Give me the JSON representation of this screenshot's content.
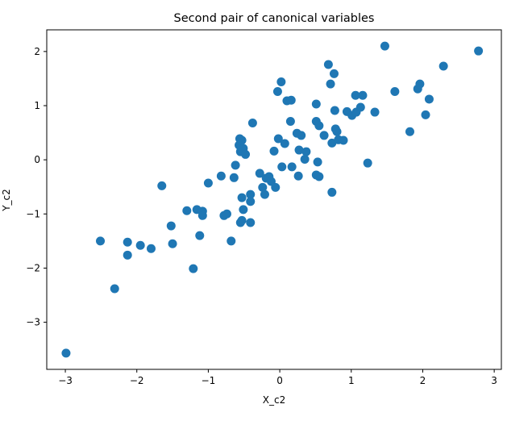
{
  "chart_data": {
    "type": "scatter",
    "title": "Second pair of canonical variables",
    "xlabel": "X_c2",
    "ylabel": "Y_c2",
    "xlim": [
      -3.26,
      3.1
    ],
    "ylim": [
      -3.87,
      2.4
    ],
    "xticks": [
      -3,
      -2,
      -1,
      0,
      1,
      2,
      3
    ],
    "yticks": [
      -3,
      -2,
      -1,
      0,
      1,
      2
    ],
    "xtick_labels": [
      "−3",
      "−2",
      "−1",
      "0",
      "1",
      "2",
      "3"
    ],
    "ytick_labels": [
      "−3",
      "−2",
      "−1",
      "0",
      "1",
      "2"
    ],
    "grid": false,
    "color": "#1f77b4",
    "points": [
      [
        -2.99,
        -3.57
      ],
      [
        -2.51,
        -1.5
      ],
      [
        -2.31,
        -2.38
      ],
      [
        -2.13,
        -1.52
      ],
      [
        -2.13,
        -1.76
      ],
      [
        -1.95,
        -1.58
      ],
      [
        -1.8,
        -1.64
      ],
      [
        -1.65,
        -0.48
      ],
      [
        -1.52,
        -1.22
      ],
      [
        -1.5,
        -1.55
      ],
      [
        -1.3,
        -0.94
      ],
      [
        -1.21,
        -2.01
      ],
      [
        -1.16,
        -0.92
      ],
      [
        -1.12,
        -1.4
      ],
      [
        -1.08,
        -0.95
      ],
      [
        -1.08,
        -1.03
      ],
      [
        -1.0,
        -0.43
      ],
      [
        -0.82,
        -0.3
      ],
      [
        -0.78,
        -1.03
      ],
      [
        -0.74,
        -1.0
      ],
      [
        -0.68,
        -1.5
      ],
      [
        -0.64,
        -0.33
      ],
      [
        -0.62,
        -0.1
      ],
      [
        -0.56,
        0.39
      ],
      [
        -0.53,
        0.36
      ],
      [
        -0.57,
        0.27
      ],
      [
        -0.55,
        0.15
      ],
      [
        -0.51,
        0.21
      ],
      [
        -0.48,
        0.1
      ],
      [
        -0.53,
        -0.7
      ],
      [
        -0.51,
        -0.92
      ],
      [
        -0.53,
        -1.12
      ],
      [
        -0.55,
        -1.16
      ],
      [
        -0.41,
        -0.64
      ],
      [
        -0.41,
        -0.77
      ],
      [
        -0.41,
        -1.16
      ],
      [
        -0.38,
        0.68
      ],
      [
        -0.28,
        -0.25
      ],
      [
        -0.24,
        -0.51
      ],
      [
        -0.21,
        -0.64
      ],
      [
        -0.19,
        -0.34
      ],
      [
        -0.15,
        -0.31
      ],
      [
        -0.12,
        -0.4
      ],
      [
        -0.06,
        -0.51
      ],
      [
        -0.08,
        0.16
      ],
      [
        -0.02,
        0.39
      ],
      [
        0.02,
        1.44
      ],
      [
        -0.03,
        1.26
      ],
      [
        0.03,
        -0.13
      ],
      [
        0.07,
        0.3
      ],
      [
        0.1,
        1.09
      ],
      [
        0.16,
        1.1
      ],
      [
        0.15,
        0.71
      ],
      [
        0.17,
        -0.13
      ],
      [
        0.24,
        0.49
      ],
      [
        0.26,
        -0.3
      ],
      [
        0.27,
        0.18
      ],
      [
        0.3,
        0.45
      ],
      [
        0.35,
        0.01
      ],
      [
        0.37,
        0.15
      ],
      [
        0.51,
        1.03
      ],
      [
        0.51,
        0.71
      ],
      [
        0.51,
        -0.28
      ],
      [
        0.53,
        -0.04
      ],
      [
        0.55,
        -0.31
      ],
      [
        0.55,
        0.63
      ],
      [
        0.62,
        0.45
      ],
      [
        0.68,
        1.76
      ],
      [
        0.71,
        1.4
      ],
      [
        0.76,
        1.59
      ],
      [
        0.73,
        -0.6
      ],
      [
        0.73,
        0.31
      ],
      [
        0.77,
        0.91
      ],
      [
        0.8,
        0.52
      ],
      [
        0.78,
        0.57
      ],
      [
        0.82,
        0.37
      ],
      [
        0.89,
        0.36
      ],
      [
        0.94,
        0.89
      ],
      [
        1.01,
        0.82
      ],
      [
        1.07,
        0.88
      ],
      [
        1.06,
        1.19
      ],
      [
        1.16,
        1.19
      ],
      [
        1.13,
        0.97
      ],
      [
        1.23,
        -0.06
      ],
      [
        1.33,
        0.88
      ],
      [
        1.47,
        2.1
      ],
      [
        1.61,
        1.26
      ],
      [
        1.82,
        0.52
      ],
      [
        1.93,
        1.31
      ],
      [
        1.96,
        1.4
      ],
      [
        2.09,
        1.12
      ],
      [
        2.04,
        0.83
      ],
      [
        2.29,
        1.73
      ],
      [
        2.78,
        2.01
      ]
    ]
  }
}
